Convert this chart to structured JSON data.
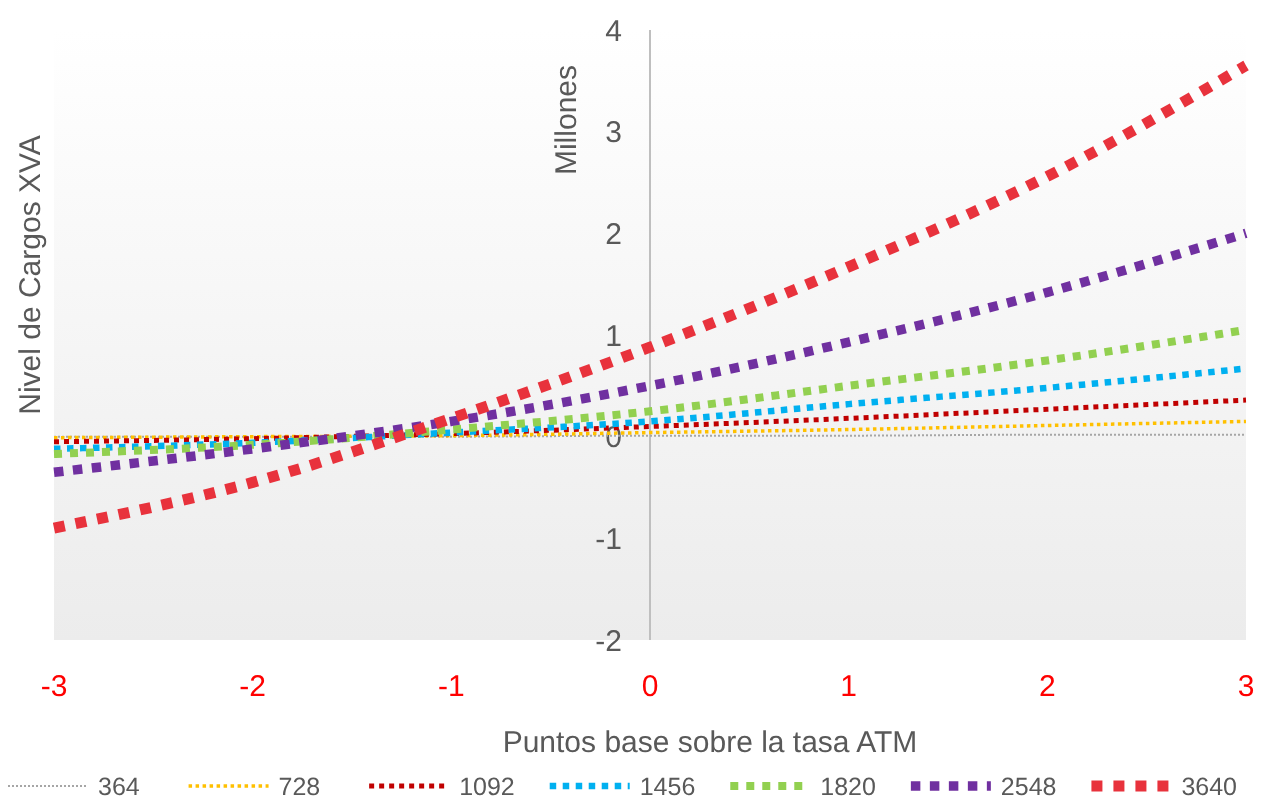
{
  "chart_data": {
    "type": "line",
    "xlabel": "Puntos base sobre la tasa ATM",
    "ylabel": "Nivel de Cargos XVA",
    "y2label": "Millones",
    "x": [
      -3,
      -2,
      -1,
      0,
      1,
      2,
      3
    ],
    "xlim": [
      -3,
      3
    ],
    "xticks": [
      -3,
      -2,
      -1,
      0,
      1,
      2,
      3
    ],
    "ylim": [
      -2,
      4
    ],
    "yticks": [
      -2,
      -1,
      0,
      1,
      2,
      3,
      4
    ],
    "legend": "bottom",
    "line_style": "dotted",
    "series": [
      {
        "name": "364",
        "color": "#a6a6a6",
        "values": [
          0,
          0,
          0,
          0.01,
          0.01,
          0.02,
          0.02
        ]
      },
      {
        "name": "728",
        "color": "#ffc000",
        "values": [
          -0.01,
          0,
          0.01,
          0.04,
          0.07,
          0.11,
          0.15
        ]
      },
      {
        "name": "1092",
        "color": "#c00000",
        "values": [
          -0.05,
          -0.02,
          0.03,
          0.1,
          0.18,
          0.27,
          0.36
        ]
      },
      {
        "name": "1456",
        "color": "#00b0f0",
        "values": [
          -0.12,
          -0.06,
          0.04,
          0.15,
          0.32,
          0.48,
          0.67
        ]
      },
      {
        "name": "1820",
        "color": "#92d050",
        "values": [
          -0.17,
          -0.08,
          0.07,
          0.25,
          0.5,
          0.75,
          1.05
        ]
      },
      {
        "name": "2548",
        "color": "#7030a0",
        "values": [
          -0.35,
          -0.12,
          0.15,
          0.5,
          0.93,
          1.42,
          2.0
        ]
      },
      {
        "name": "3640",
        "color": "#e8323c",
        "values": [
          -0.9,
          -0.45,
          0.18,
          0.88,
          1.67,
          2.56,
          3.65
        ]
      }
    ]
  }
}
